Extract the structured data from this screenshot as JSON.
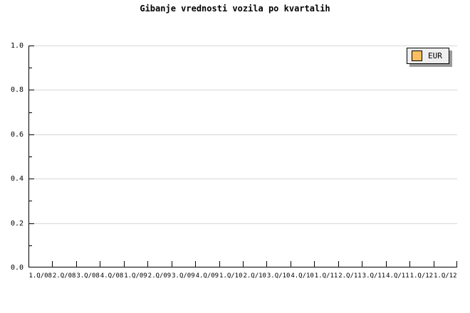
{
  "chart": {
    "title": "Gibanje vrednosti vozila po kvartalih",
    "legend": {
      "label": "EUR",
      "swatch_color": "#FBBE60",
      "background": "#eeeeee",
      "shadow_color": "#999999"
    },
    "colors": {
      "background": "#ffffff",
      "grid": "#d8d8d8",
      "axis": "#000000",
      "text": "#000000"
    }
  },
  "chart_data": {
    "type": "line",
    "title": "Gibanje vrednosti vozila po kvartalih",
    "xlabel": "",
    "ylabel": "",
    "categories": [
      "1.Q/08",
      "2.Q/08",
      "3.Q/08",
      "4.Q/08",
      "1.Q/09",
      "2.Q/09",
      "3.Q/09",
      "4.Q/09",
      "1.Q/10",
      "2.Q/10",
      "3.Q/10",
      "4.Q/10",
      "1.Q/11",
      "2.Q/11",
      "3.Q/11",
      "4.Q/11",
      "1.Q/12",
      "1.Q/12"
    ],
    "y_ticks": [
      "1.0",
      "0.8",
      "0.6",
      "0.4",
      "0.2",
      "0.0"
    ],
    "ylim": [
      0.0,
      1.0
    ],
    "grid": true,
    "legend_position": "top-right",
    "series": [
      {
        "name": "EUR",
        "color": "#FBBE60",
        "values": []
      }
    ]
  }
}
